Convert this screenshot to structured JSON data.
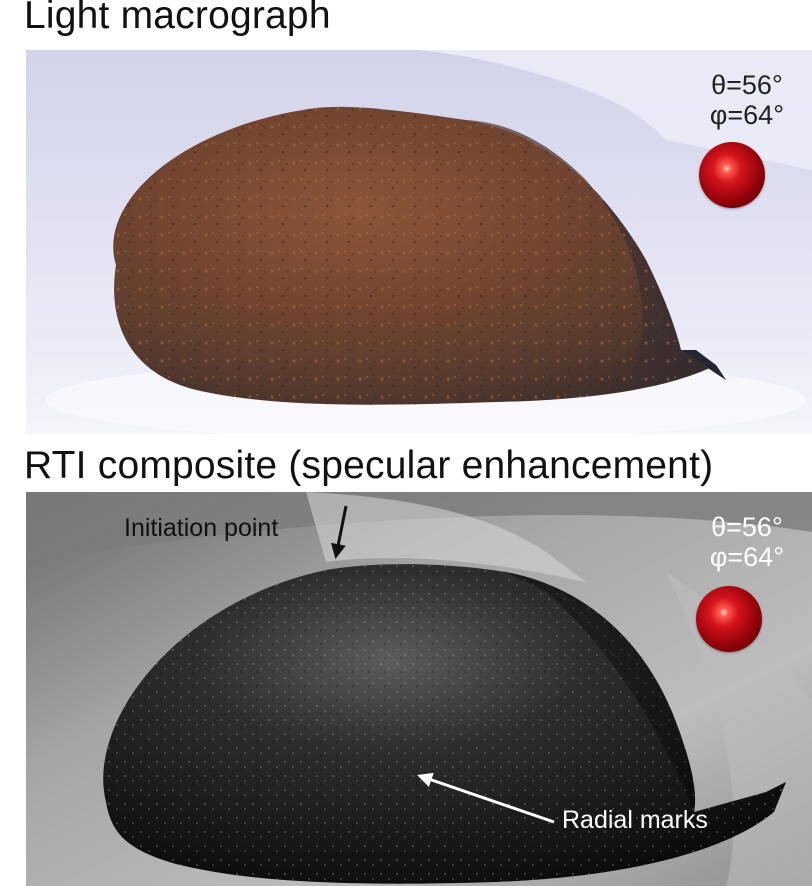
{
  "panels": {
    "top": {
      "title": "Light macrograph",
      "theta": "θ=56°",
      "phi": "φ=64°"
    },
    "bottom": {
      "title": "RTI composite (specular enhancement)",
      "theta": "θ=56°",
      "phi": "φ=64°",
      "annotations": {
        "initiation": "Initiation point",
        "radial": "Radial marks"
      }
    }
  },
  "colors": {
    "sphere": "#c8101a",
    "background_top": "#dcdcf0",
    "stone_top": "#7a4a30",
    "background_bottom": "#9a9a9a",
    "stone_bottom": "#141414"
  },
  "icons": {
    "light_direction": "red-sphere-icon",
    "arrows": "arrow-icon"
  }
}
